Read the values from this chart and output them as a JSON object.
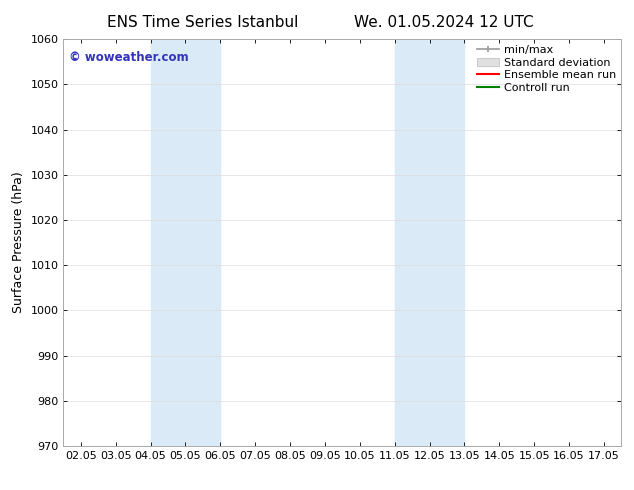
{
  "title_left": "ENS Time Series Istanbul",
  "title_right": "We. 01.05.2024 12 UTC",
  "ylabel": "Surface Pressure (hPa)",
  "ylim": [
    970,
    1060
  ],
  "yticks": [
    970,
    980,
    990,
    1000,
    1010,
    1020,
    1030,
    1040,
    1050,
    1060
  ],
  "xlim_min": 1.5,
  "xlim_max": 17.5,
  "xtick_labels": [
    "02.05",
    "03.05",
    "04.05",
    "05.05",
    "06.05",
    "07.05",
    "08.05",
    "09.05",
    "10.05",
    "11.05",
    "12.05",
    "13.05",
    "14.05",
    "15.05",
    "16.05",
    "17.05"
  ],
  "xtick_positions": [
    2,
    3,
    4,
    5,
    6,
    7,
    8,
    9,
    10,
    11,
    12,
    13,
    14,
    15,
    16,
    17
  ],
  "shaded_bands": [
    {
      "x_start": 4.0,
      "x_end": 6.0
    },
    {
      "x_start": 11.0,
      "x_end": 13.0
    }
  ],
  "shaded_color": "#daeaf6",
  "background_color": "#ffffff",
  "watermark_text": "© woweather.com",
  "watermark_color": "#3333bb",
  "legend_labels": [
    "min/max",
    "Standard deviation",
    "Ensemble mean run",
    "Controll run"
  ],
  "legend_colors": [
    "#999999",
    "#cccccc",
    "#ff0000",
    "#008000"
  ],
  "spine_color": "#aaaaaa",
  "tick_color": "#000000",
  "grid_color": "#dddddd",
  "title_font_size": 11,
  "axis_label_font_size": 9,
  "tick_font_size": 8,
  "legend_font_size": 8
}
